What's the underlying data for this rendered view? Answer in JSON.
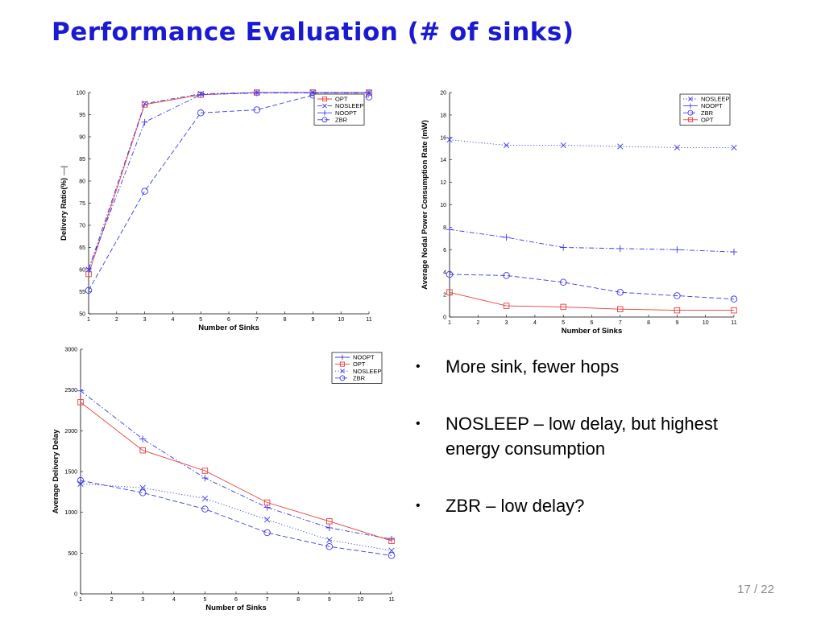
{
  "slide": {
    "title": "Performance Evaluation (# of sinks)",
    "page_number": "17 / 22"
  },
  "bullets": [
    {
      "text": "More sink, fewer hops"
    },
    {
      "text": "NOSLEEP – low delay, but highest energy consumption"
    },
    {
      "text": "ZBR – low delay?"
    }
  ],
  "chart_data": [
    {
      "id": "delivery",
      "type": "line",
      "xlabel": "Number of Sinks",
      "ylabel": "Delivery Ratio(%)",
      "ylabel_suffix": "—|",
      "xlim": [
        1,
        11
      ],
      "ylim": [
        50,
        100
      ],
      "xticks": [
        1,
        2,
        3,
        4,
        5,
        6,
        7,
        8,
        9,
        10,
        11
      ],
      "yticks": [
        50,
        55,
        60,
        65,
        70,
        75,
        80,
        85,
        90,
        95,
        100
      ],
      "legend_position": "top-right",
      "grid": false,
      "x": [
        1,
        3,
        5,
        7,
        9,
        11
      ],
      "series": [
        {
          "name": "OPT",
          "color": "#e83c3c",
          "marker": "square",
          "dash": "solid",
          "values": [
            59,
            97.3,
            99.5,
            100,
            100,
            100
          ]
        },
        {
          "name": "NOSLEEP",
          "color": "#3a3ae8",
          "marker": "x",
          "dash": "dashdot",
          "values": [
            60,
            97.5,
            99.7,
            100,
            100,
            100
          ]
        },
        {
          "name": "NOOPT",
          "color": "#3a3ae8",
          "marker": "plus",
          "dash": "dashdot",
          "values": [
            60.2,
            93.3,
            99.5,
            99.9,
            99.9,
            99.9
          ]
        },
        {
          "name": "ZBR",
          "color": "#3a3ae8",
          "marker": "circle",
          "dash": "dashed",
          "values": [
            55.3,
            77.7,
            95.4,
            96.1,
            99.4,
            99
          ]
        }
      ]
    },
    {
      "id": "power",
      "type": "line",
      "xlabel": "Number of Sinks",
      "ylabel": "Average Nodal Power Consumption Rate (mW)",
      "xlim": [
        1,
        11
      ],
      "ylim": [
        0,
        20
      ],
      "xticks": [
        1,
        2,
        3,
        4,
        5,
        6,
        7,
        8,
        9,
        10,
        11
      ],
      "yticks": [
        0,
        2,
        4,
        6,
        8,
        10,
        12,
        14,
        16,
        18,
        20
      ],
      "legend_position": "top-right",
      "grid": false,
      "x": [
        1,
        3,
        5,
        7,
        9,
        11
      ],
      "series": [
        {
          "name": "NOSLEEP",
          "color": "#3a3ae8",
          "marker": "x",
          "dash": "dotted",
          "values": [
            15.8,
            15.3,
            15.3,
            15.2,
            15.1,
            15.1
          ]
        },
        {
          "name": "NOOPT",
          "color": "#3a3ae8",
          "marker": "plus",
          "dash": "dashdot",
          "values": [
            7.8,
            7.1,
            6.2,
            6.1,
            6.0,
            5.8
          ]
        },
        {
          "name": "ZBR",
          "color": "#3a3ae8",
          "marker": "circle",
          "dash": "dashed",
          "values": [
            3.8,
            3.7,
            3.1,
            2.2,
            1.9,
            1.6
          ]
        },
        {
          "name": "OPT",
          "color": "#e83c3c",
          "marker": "square",
          "dash": "solid",
          "values": [
            2.2,
            1.0,
            0.9,
            0.7,
            0.6,
            0.6
          ]
        }
      ]
    },
    {
      "id": "delay",
      "type": "line",
      "xlabel": "Number of Sinks",
      "ylabel": "Average Delivery Delay",
      "xlim": [
        1,
        11
      ],
      "ylim": [
        0,
        3000
      ],
      "xticks": [
        1,
        2,
        3,
        4,
        5,
        6,
        7,
        8,
        9,
        10,
        11
      ],
      "yticks": [
        0,
        500,
        1000,
        1500,
        2000,
        2500,
        3000
      ],
      "legend_position": "top-right",
      "grid": false,
      "x": [
        1,
        3,
        5,
        7,
        9,
        11
      ],
      "series": [
        {
          "name": "NOOPT",
          "color": "#3a3ae8",
          "marker": "plus",
          "dash": "dashdot",
          "values": [
            2490,
            1900,
            1420,
            1060,
            810,
            670
          ]
        },
        {
          "name": "OPT",
          "color": "#e83c3c",
          "marker": "square",
          "dash": "solid",
          "values": [
            2350,
            1760,
            1510,
            1120,
            890,
            650
          ]
        },
        {
          "name": "NOSLEEP",
          "color": "#3a3ae8",
          "marker": "x",
          "dash": "dotted",
          "values": [
            1350,
            1300,
            1170,
            910,
            660,
            530
          ]
        },
        {
          "name": "ZBR",
          "color": "#3a3ae8",
          "marker": "circle",
          "dash": "dashed",
          "values": [
            1390,
            1240,
            1040,
            750,
            580,
            470
          ]
        }
      ]
    }
  ]
}
